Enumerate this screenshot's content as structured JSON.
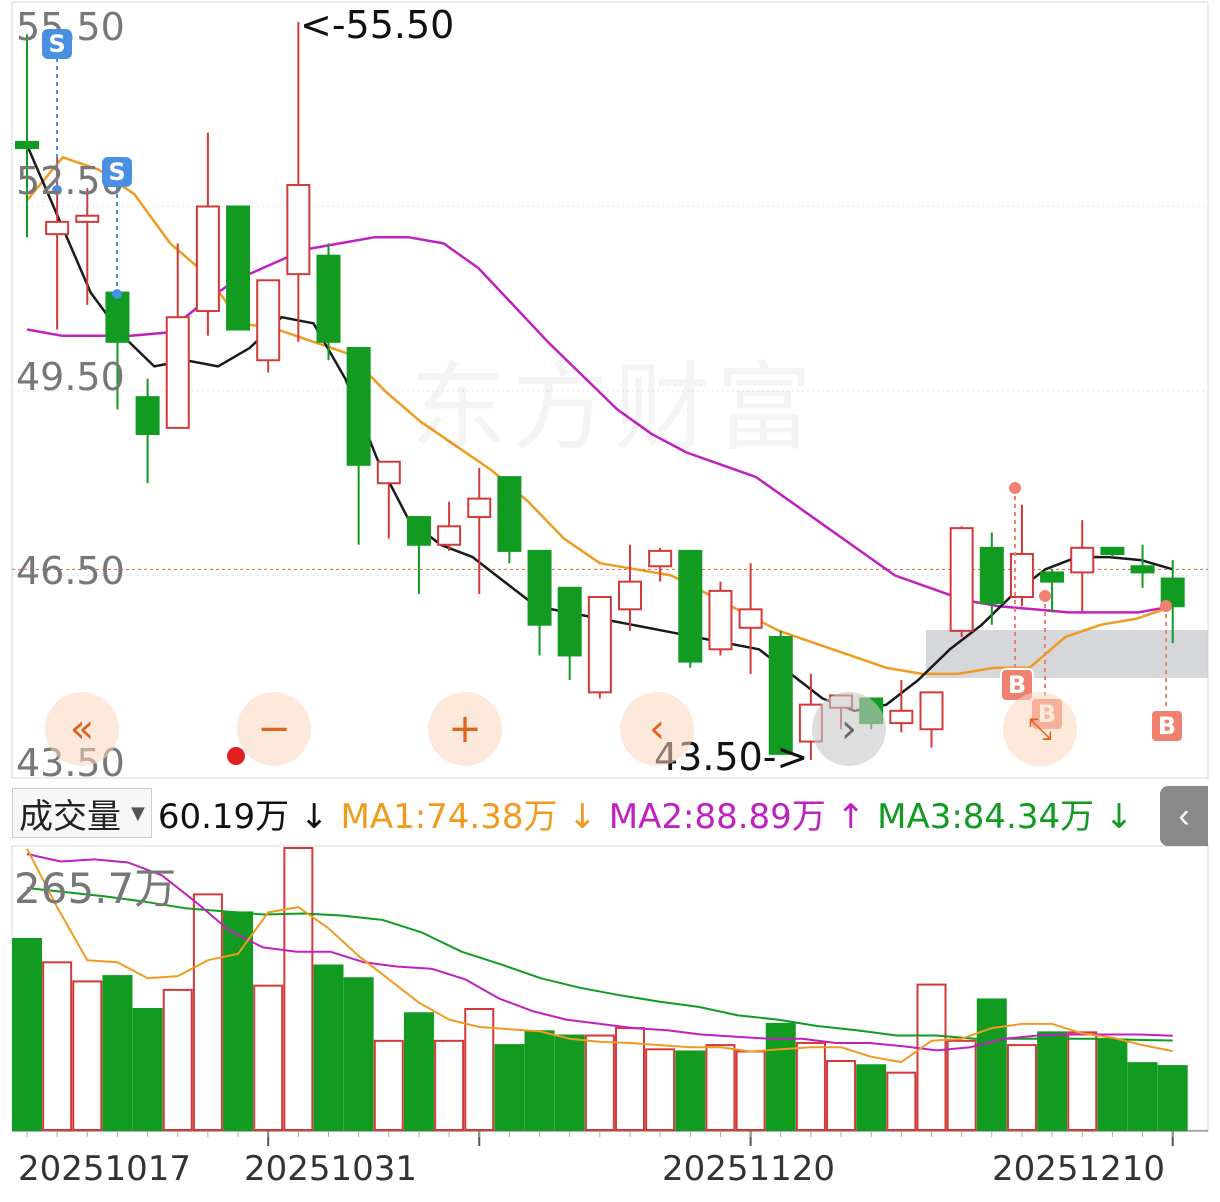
{
  "price_axis": {
    "labels": [
      "55.50",
      "52.50",
      "49.50",
      "46.50",
      "43.50"
    ]
  },
  "volume_axis": {
    "label": "265.7万"
  },
  "date_axis": {
    "labels": [
      "20251017",
      "20251031",
      "20251120",
      "20251210"
    ]
  },
  "extremes": {
    "high_label": "<-55.50",
    "low_label": "43.50->"
  },
  "volume_header": {
    "selector": "成交量",
    "current": "60.19万 ↓",
    "ma1": "MA1:74.38万 ↓",
    "ma2": "MA2:88.89万 ↑",
    "ma3": "MA3:84.34万 ↓"
  },
  "controls": {
    "fast_back": "«",
    "zoom_out": "−",
    "zoom_in": "+",
    "prev": "‹",
    "next": "›"
  },
  "collapse_icon": "‹",
  "watermark": "东方财富",
  "signal_tags": {
    "sell": "S",
    "buy": "B"
  },
  "colors": {
    "up": "#d23a3a",
    "down": "#119b21",
    "ma_price1": "#1a1a1a",
    "ma_price2": "#f09a20",
    "ma_price3": "#c020c0",
    "vol_ma1": "#f09a20",
    "vol_ma2": "#c020c0",
    "vol_ma3": "#119b21",
    "last_price_line": "#c87040"
  },
  "chart_data": {
    "type": "candlestick",
    "price_ylim": [
      43.5,
      55.5
    ],
    "last_price": 46.6,
    "candles": [
      {
        "o": 53.55,
        "h": 55.3,
        "l": 52.0,
        "c": 53.45
      },
      {
        "o": 52.05,
        "h": 53.3,
        "l": 50.5,
        "c": 52.25
      },
      {
        "o": 52.25,
        "h": 52.8,
        "l": 50.9,
        "c": 52.35
      },
      {
        "o": 51.1,
        "h": 51.1,
        "l": 49.2,
        "c": 50.3
      },
      {
        "o": 49.4,
        "h": 49.7,
        "l": 48.0,
        "c": 48.8
      },
      {
        "o": 48.9,
        "h": 51.9,
        "l": 48.9,
        "c": 50.7
      },
      {
        "o": 50.8,
        "h": 53.7,
        "l": 50.4,
        "c": 52.5
      },
      {
        "o": 52.5,
        "h": 52.5,
        "l": 50.5,
        "c": 50.5
      },
      {
        "o": 50.0,
        "h": 51.3,
        "l": 49.8,
        "c": 51.3
      },
      {
        "o": 51.4,
        "h": 55.5,
        "l": 50.3,
        "c": 52.85
      },
      {
        "o": 51.7,
        "h": 51.9,
        "l": 50.0,
        "c": 50.3
      },
      {
        "o": 50.2,
        "h": 50.2,
        "l": 47.0,
        "c": 48.3
      },
      {
        "o": 48.0,
        "h": 48.3,
        "l": 47.1,
        "c": 48.35
      },
      {
        "o": 47.45,
        "h": 47.45,
        "l": 46.2,
        "c": 47.0
      },
      {
        "o": 47.0,
        "h": 47.7,
        "l": 46.9,
        "c": 47.3
      },
      {
        "o": 47.45,
        "h": 48.25,
        "l": 46.2,
        "c": 47.75
      },
      {
        "o": 48.1,
        "h": 48.1,
        "l": 46.7,
        "c": 46.9
      },
      {
        "o": 46.9,
        "h": 46.9,
        "l": 45.2,
        "c": 45.7
      },
      {
        "o": 46.3,
        "h": 46.3,
        "l": 44.8,
        "c": 45.2
      },
      {
        "o": 44.6,
        "h": 46.1,
        "l": 44.5,
        "c": 46.15
      },
      {
        "o": 45.95,
        "h": 47.0,
        "l": 45.6,
        "c": 46.4
      },
      {
        "o": 46.65,
        "h": 46.95,
        "l": 46.4,
        "c": 46.9
      },
      {
        "o": 46.9,
        "h": 46.9,
        "l": 45.0,
        "c": 45.1
      },
      {
        "o": 45.3,
        "h": 46.4,
        "l": 45.2,
        "c": 46.25
      },
      {
        "o": 45.65,
        "h": 46.7,
        "l": 44.9,
        "c": 45.95
      },
      {
        "o": 45.5,
        "h": 45.6,
        "l": 43.6,
        "c": 43.6
      },
      {
        "o": 43.8,
        "h": 44.9,
        "l": 43.5,
        "c": 44.4
      },
      {
        "o": 44.35,
        "h": 44.5,
        "l": 44.0,
        "c": 44.55
      },
      {
        "o": 44.5,
        "h": 44.5,
        "l": 44.0,
        "c": 44.1
      },
      {
        "o": 44.1,
        "h": 44.8,
        "l": 43.95,
        "c": 44.3
      },
      {
        "o": 44.0,
        "h": 44.6,
        "l": 43.7,
        "c": 44.6
      },
      {
        "o": 45.6,
        "h": 47.3,
        "l": 45.5,
        "c": 47.27
      },
      {
        "o": 46.95,
        "h": 47.2,
        "l": 45.7,
        "c": 46.05
      },
      {
        "o": 46.15,
        "h": 47.65,
        "l": 46.0,
        "c": 46.85
      },
      {
        "o": 46.55,
        "h": 46.6,
        "l": 45.9,
        "c": 46.4
      },
      {
        "o": 46.55,
        "h": 47.4,
        "l": 45.9,
        "c": 46.95
      },
      {
        "o": 46.95,
        "h": 46.95,
        "l": 46.8,
        "c": 46.85
      },
      {
        "o": 46.65,
        "h": 47.0,
        "l": 46.3,
        "c": 46.55
      },
      {
        "o": 46.45,
        "h": 46.75,
        "l": 45.4,
        "c": 46.0
      }
    ],
    "ma_price1": [
      53.5,
      52.3,
      51.1,
      50.4,
      49.9,
      50.0,
      49.9,
      50.2,
      50.7,
      50.6,
      49.7,
      48.4,
      47.4,
      47.0,
      46.8,
      46.4,
      46.0,
      45.9,
      45.8,
      45.7,
      45.6,
      45.5,
      45.4,
      45.3,
      44.9,
      44.5,
      44.3,
      44.4,
      44.8,
      45.3,
      45.7,
      46.2,
      46.6,
      46.8,
      46.8,
      46.75,
      46.6
    ],
    "ma_price2": [
      52.6,
      53.3,
      53.1,
      52.7,
      51.9,
      51.4,
      50.6,
      50.5,
      50.3,
      50.1,
      49.5,
      49.0,
      48.6,
      48.2,
      47.7,
      47.1,
      46.7,
      46.6,
      46.5,
      46.2,
      45.9,
      45.6,
      45.4,
      45.2,
      45.0,
      44.9,
      44.9,
      45.0,
      45.0,
      45.5,
      45.7,
      45.8,
      46.0
    ],
    "ma_price3": [
      50.5,
      50.4,
      50.4,
      50.4,
      50.45,
      50.9,
      51.3,
      51.55,
      51.8,
      51.9,
      52.0,
      52.0,
      51.9,
      51.5,
      50.9,
      50.3,
      49.75,
      49.2,
      48.8,
      48.5,
      48.3,
      48.1,
      47.7,
      47.3,
      46.9,
      46.5,
      46.3,
      46.1,
      46.0,
      45.95,
      45.9,
      45.9,
      45.9,
      46.0
    ],
    "volume_ylim": [
      0,
      265.7
    ],
    "volumes": [
      180,
      158,
      140,
      145,
      114,
      132,
      222,
      205,
      136,
      265.7,
      155,
      143,
      84,
      110,
      84,
      114,
      80,
      93,
      89,
      89,
      96,
      76,
      74,
      80,
      74,
      100,
      82,
      65,
      61,
      54,
      137,
      84,
      123,
      80,
      92,
      92,
      85,
      63,
      60.19
    ],
    "vol_ma1": [
      265,
      210,
      160,
      158,
      143,
      145,
      160,
      166,
      205,
      210,
      190,
      164,
      142,
      120,
      104,
      97,
      95,
      93,
      86,
      83,
      82,
      80,
      78,
      78,
      74,
      76,
      78,
      78,
      69,
      64,
      84,
      86,
      96,
      100,
      100,
      91,
      87,
      80,
      74.38
    ],
    "vol_ma2": [
      260,
      253,
      255,
      252,
      240,
      215,
      188,
      172,
      168,
      168,
      158,
      154,
      152,
      142,
      124,
      112,
      104,
      100,
      96,
      94,
      90,
      88,
      86,
      86,
      82,
      82,
      79,
      75,
      78,
      86,
      89,
      90,
      90,
      90,
      88.89
    ],
    "vol_ma3": [
      228,
      224,
      220,
      215,
      209,
      206,
      203,
      204,
      202,
      198,
      186,
      168,
      156,
      143,
      134,
      127,
      121,
      116,
      108,
      104,
      98,
      94,
      89,
      89,
      86,
      86,
      86,
      86,
      85,
      84.34
    ]
  }
}
